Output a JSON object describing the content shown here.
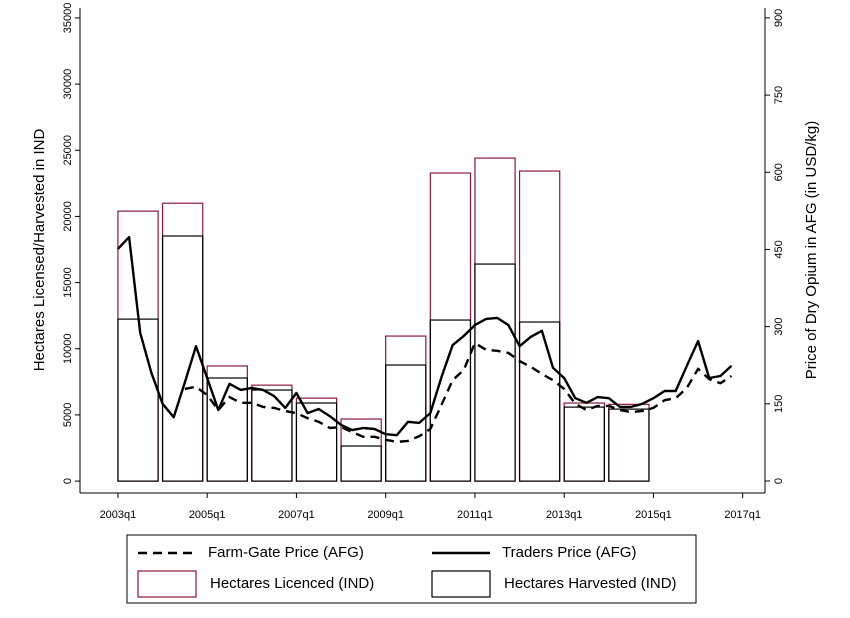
{
  "chart_data": {
    "type": "bar-line",
    "ylabel": "Hectares Licensed/Harvested in IND",
    "y2label": "Price of Dry Opium in AFG (in USD/kg)",
    "xlim": [
      2002.15,
      2017.5
    ],
    "xticks": [
      {
        "value": 2003,
        "label": "2003q1"
      },
      {
        "value": 2005,
        "label": "2005q1"
      },
      {
        "value": 2007,
        "label": "2007q1"
      },
      {
        "value": 2009,
        "label": "2009q1"
      },
      {
        "value": 2011,
        "label": "2011q1"
      },
      {
        "value": 2013,
        "label": "2013q1"
      },
      {
        "value": 2015,
        "label": "2015q1"
      },
      {
        "value": 2017,
        "label": "2017q1"
      }
    ],
    "ylim": [
      -900,
      35750
    ],
    "yticks": [
      0,
      5000,
      10000,
      15000,
      20000,
      25000,
      30000,
      35000
    ],
    "y2lim": [
      -23.3,
      919.2
    ],
    "y2ticks": [
      0,
      150,
      300,
      450,
      600,
      750,
      900
    ],
    "x": [
      2003,
      2003.25,
      2003.5,
      2003.75,
      2004,
      2004.25,
      2004.5,
      2004.75,
      2005,
      2005.25,
      2005.5,
      2005.75,
      2006,
      2006.25,
      2006.5,
      2006.75,
      2007,
      2007.25,
      2007.5,
      2007.75,
      2008,
      2008.25,
      2008.5,
      2008.75,
      2009,
      2009.25,
      2009.5,
      2009.75,
      2010,
      2010.25,
      2010.5,
      2010.75,
      2011,
      2011.25,
      2011.5,
      2011.75,
      2012,
      2012.25,
      2012.5,
      2012.75,
      2013,
      2013.25,
      2013.5,
      2013.75,
      2014,
      2014.25,
      2014.5,
      2014.75,
      2015,
      2015.25,
      2015.5,
      2015.75,
      2016,
      2016.25,
      2016.5,
      2016.75
    ],
    "series": [
      {
        "name": "Farm-Gate Price (AFG)",
        "type": "line",
        "dashed": true,
        "axis": "y2",
        "color": "#000000",
        "values": [
          null,
          null,
          null,
          null,
          null,
          null,
          179,
          183,
          167,
          138,
          163,
          152,
          152,
          144,
          142,
          136,
          132,
          122,
          115,
          103,
          105,
          95,
          86,
          86,
          80,
          76,
          78,
          87,
          101,
          148,
          196,
          216,
          268,
          255,
          253,
          249,
          233,
          222,
          208,
          196,
          179,
          150,
          138,
          146,
          146,
          138,
          134,
          136,
          142,
          157,
          161,
          181,
          218,
          198,
          190,
          204
        ]
      },
      {
        "name": "Traders Price (AFG)",
        "type": "line",
        "dashed": false,
        "axis": "y2",
        "color": "#000000",
        "values": [
          451,
          474,
          288,
          210,
          150,
          124,
          192,
          262,
          200,
          138,
          189,
          177,
          181,
          177,
          165,
          142,
          171,
          132,
          140,
          126,
          109,
          99,
          103,
          101,
          91,
          89,
          115,
          113,
          132,
          202,
          264,
          282,
          303,
          315,
          317,
          303,
          262,
          280,
          292,
          220,
          200,
          161,
          152,
          163,
          161,
          144,
          144,
          150,
          161,
          175,
          175,
          224,
          272,
          200,
          204,
          224
        ]
      },
      {
        "name": "Hectares Licenced (IND)",
        "type": "bar",
        "color": "#8b1a3a",
        "x": [
          2003,
          2004,
          2005,
          2006,
          2007,
          2008,
          2009,
          2010,
          2011,
          2012,
          2013,
          2014
        ],
        "values": [
          20400,
          21000,
          8700,
          7250,
          6270,
          4690,
          10960,
          23280,
          24410,
          23430,
          5900,
          5800
        ]
      },
      {
        "name": "Hectares Harvested (IND)",
        "type": "bar",
        "color": "#000000",
        "x": [
          2003,
          2004,
          2005,
          2006,
          2007,
          2008,
          2009,
          2010,
          2011,
          2012,
          2013,
          2014
        ],
        "values": [
          12240,
          18520,
          7790,
          6880,
          5900,
          2650,
          8770,
          12170,
          16400,
          12020,
          5590,
          5440
        ]
      }
    ]
  }
}
